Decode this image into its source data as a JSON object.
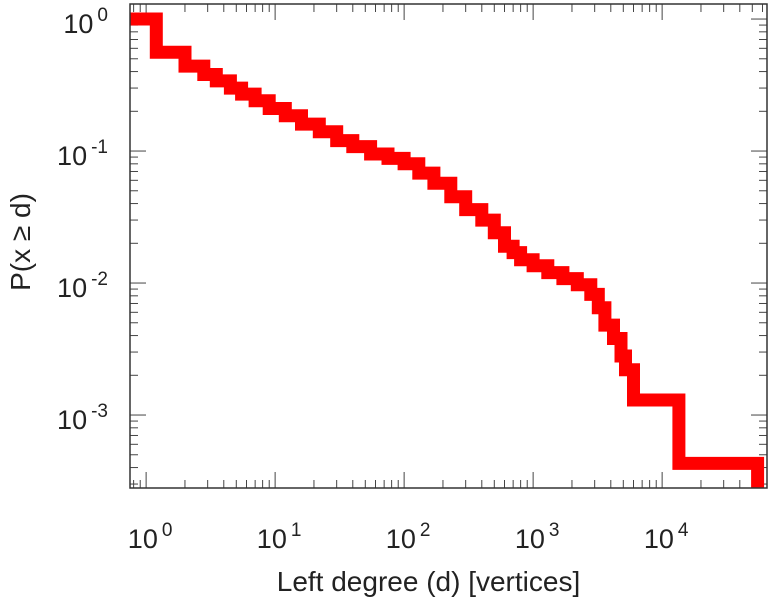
{
  "chart_data": {
    "type": "line",
    "title": "",
    "xlabel": "Left degree (d) [vertices]",
    "ylabel": "P(x ≥ d)",
    "x_scale": "log",
    "y_scale": "log",
    "xlim": [
      0.75,
      65000
    ],
    "ylim": [
      0.00028,
      1.3
    ],
    "grid": false,
    "legend": "none",
    "x_ticks": [
      {
        "base": "10",
        "exp": "0",
        "value": 1
      },
      {
        "base": "10",
        "exp": "1",
        "value": 10
      },
      {
        "base": "10",
        "exp": "2",
        "value": 100
      },
      {
        "base": "10",
        "exp": "3",
        "value": 1000
      },
      {
        "base": "10",
        "exp": "4",
        "value": 10000
      }
    ],
    "y_ticks": [
      {
        "base": "10",
        "exp": "0",
        "value": 1
      },
      {
        "base": "10",
        "exp": "-1",
        "value": 0.1
      },
      {
        "base": "10",
        "exp": "-2",
        "value": 0.01
      },
      {
        "base": "10",
        "exp": "-3",
        "value": 0.001
      }
    ],
    "series": [
      {
        "color": "#ff0000",
        "step": true,
        "x": [
          1,
          1.2,
          2,
          2.8,
          3.5,
          4.5,
          5.5,
          7,
          9,
          12,
          16,
          22,
          30,
          40,
          55,
          75,
          100,
          130,
          170,
          230,
          300,
          400,
          500,
          600,
          700,
          800,
          1000,
          1300,
          1700,
          2200,
          2800,
          3200,
          3600,
          4200,
          4800,
          5200,
          6000,
          13500,
          55000
        ],
        "y": [
          1.0,
          0.56,
          0.44,
          0.38,
          0.34,
          0.3,
          0.27,
          0.24,
          0.21,
          0.185,
          0.16,
          0.14,
          0.12,
          0.108,
          0.095,
          0.088,
          0.08,
          0.068,
          0.057,
          0.045,
          0.036,
          0.03,
          0.024,
          0.019,
          0.017,
          0.015,
          0.0135,
          0.012,
          0.0108,
          0.0097,
          0.0082,
          0.0065,
          0.0048,
          0.0038,
          0.0028,
          0.0022,
          0.0013,
          0.00043,
          0.00028
        ]
      }
    ]
  }
}
